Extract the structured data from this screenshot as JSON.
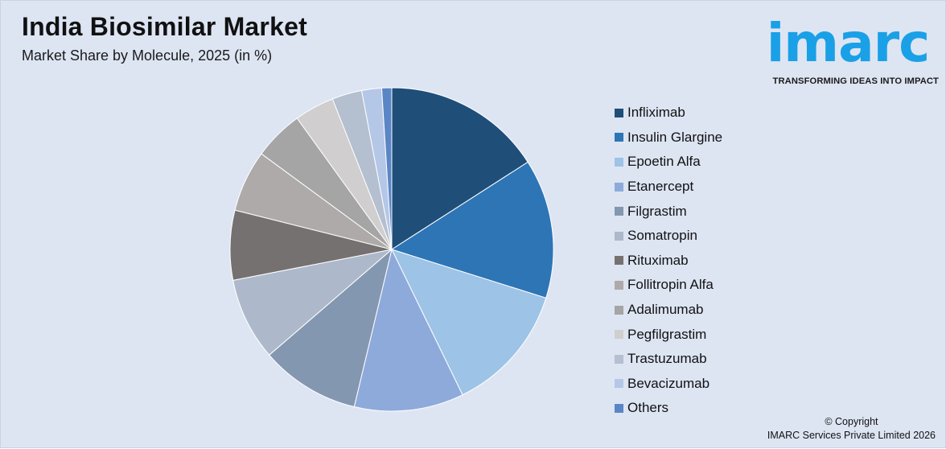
{
  "header": {
    "title": "India Biosimilar Market",
    "subtitle": "Market Share by Molecule, 2025 (in %)"
  },
  "logo": {
    "word": "imarc",
    "tagline": "TRANSFORMING IDEAS INTO IMPACT",
    "color": "#1aa0e6"
  },
  "footer": {
    "copyright_line1": "© Copyright",
    "copyright_line2": "IMARC Services Private Limited 2026"
  },
  "chart_data": {
    "type": "pie",
    "title": "India Biosimilar Market",
    "subtitle": "Market Share by Molecule, 2025 (in %)",
    "legend_placement": "right",
    "categories": [
      "Infliximab",
      "Insulin Glargine",
      "Epoetin Alfa",
      "Etanercept",
      "Filgrastim",
      "Somatropin",
      "Rituximab",
      "Follitropin Alfa",
      "Adalimumab",
      "Pegfilgrastim",
      "Trastuzumab",
      "Bevacizumab",
      "Others"
    ],
    "values": [
      16.0,
      14.0,
      13.0,
      11.0,
      10.0,
      8.3,
      7.0,
      6.2,
      5.0,
      4.0,
      3.0,
      2.0,
      1.0
    ],
    "colors": [
      "#1f4e79",
      "#2e75b6",
      "#9dc3e6",
      "#8eaadb",
      "#8497b0",
      "#adb9ca",
      "#767171",
      "#aeaaaa",
      "#a5a5a5",
      "#d0cece",
      "#b4bfd0",
      "#b4c7e7",
      "#5b86c5"
    ]
  }
}
